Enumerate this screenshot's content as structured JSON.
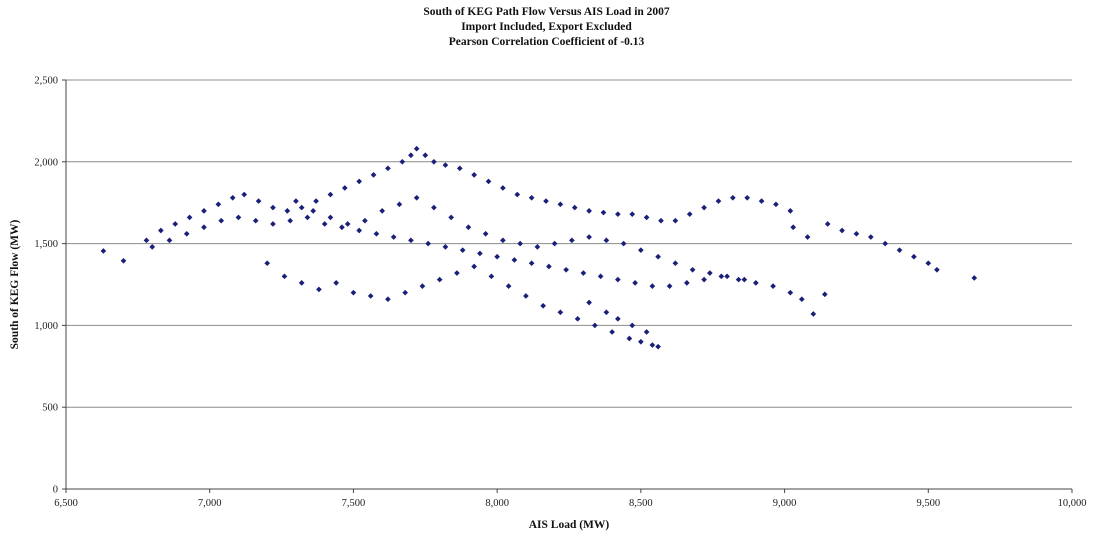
{
  "chart_data": {
    "type": "scatter",
    "title": "South of KEG Path Flow Versus AIS Load in 2007",
    "subtitle": "Import Included, Export Excluded",
    "subtitle2": "Pearson Correlation Coefficient of -0.13",
    "xlabel": "AIS Load (MW)",
    "ylabel": "South of KEG Flow (MW)",
    "xlim": [
      6500,
      10000
    ],
    "ylim": [
      0,
      2500
    ],
    "xticks": [
      "6,500",
      "7,000",
      "7,500",
      "8,000",
      "8,500",
      "9,000",
      "9,500",
      "10,000"
    ],
    "yticks": [
      "0",
      "500",
      "1,000",
      "1,500",
      "2,000",
      "2,500"
    ],
    "grid": "horizontal",
    "marker_color": "#1a1f78",
    "series": [
      {
        "points": [
          [
            6630,
            1455
          ],
          [
            6700,
            1395
          ],
          [
            6780,
            1520
          ],
          [
            6830,
            1580
          ],
          [
            6880,
            1620
          ],
          [
            6930,
            1660
          ],
          [
            6980,
            1700
          ],
          [
            7030,
            1740
          ],
          [
            7080,
            1780
          ],
          [
            7120,
            1800
          ],
          [
            7170,
            1760
          ],
          [
            7220,
            1720
          ],
          [
            7270,
            1700
          ],
          [
            7320,
            1720
          ],
          [
            7370,
            1760
          ],
          [
            7420,
            1800
          ],
          [
            7470,
            1840
          ],
          [
            7520,
            1880
          ],
          [
            7570,
            1920
          ],
          [
            7620,
            1960
          ],
          [
            7670,
            2000
          ],
          [
            7700,
            2040
          ],
          [
            7720,
            2080
          ],
          [
            7750,
            2040
          ],
          [
            7780,
            2000
          ],
          [
            7820,
            1980
          ],
          [
            7870,
            1960
          ],
          [
            7920,
            1920
          ],
          [
            7970,
            1880
          ],
          [
            8020,
            1840
          ],
          [
            8070,
            1800
          ],
          [
            8120,
            1780
          ],
          [
            8170,
            1760
          ],
          [
            8220,
            1740
          ],
          [
            8270,
            1720
          ],
          [
            8320,
            1700
          ],
          [
            8370,
            1690
          ],
          [
            8420,
            1680
          ],
          [
            8470,
            1680
          ],
          [
            8520,
            1660
          ],
          [
            8570,
            1640
          ],
          [
            8620,
            1640
          ],
          [
            8670,
            1680
          ],
          [
            8720,
            1720
          ],
          [
            8770,
            1760
          ],
          [
            8820,
            1780
          ],
          [
            8870,
            1780
          ],
          [
            8920,
            1760
          ],
          [
            8970,
            1740
          ],
          [
            9020,
            1700
          ],
          [
            6800,
            1480
          ],
          [
            6860,
            1520
          ],
          [
            6920,
            1560
          ],
          [
            6980,
            1600
          ],
          [
            7040,
            1640
          ],
          [
            7100,
            1660
          ],
          [
            7160,
            1640
          ],
          [
            7220,
            1620
          ],
          [
            7280,
            1640
          ],
          [
            7340,
            1660
          ],
          [
            7400,
            1620
          ],
          [
            7460,
            1600
          ],
          [
            7520,
            1580
          ],
          [
            7580,
            1560
          ],
          [
            7640,
            1540
          ],
          [
            7700,
            1520
          ],
          [
            7760,
            1500
          ],
          [
            7820,
            1480
          ],
          [
            7880,
            1460
          ],
          [
            7940,
            1440
          ],
          [
            8000,
            1420
          ],
          [
            8060,
            1400
          ],
          [
            8120,
            1380
          ],
          [
            8180,
            1360
          ],
          [
            8240,
            1340
          ],
          [
            8300,
            1320
          ],
          [
            8360,
            1300
          ],
          [
            8420,
            1280
          ],
          [
            8480,
            1260
          ],
          [
            8540,
            1240
          ],
          [
            8600,
            1240
          ],
          [
            8660,
            1260
          ],
          [
            8720,
            1280
          ],
          [
            8780,
            1300
          ],
          [
            8840,
            1280
          ],
          [
            8900,
            1260
          ],
          [
            8960,
            1240
          ],
          [
            9020,
            1200
          ],
          [
            9060,
            1160
          ],
          [
            9100,
            1070
          ],
          [
            7200,
            1380
          ],
          [
            7260,
            1300
          ],
          [
            7320,
            1260
          ],
          [
            7380,
            1220
          ],
          [
            7440,
            1260
          ],
          [
            7500,
            1200
          ],
          [
            7560,
            1180
          ],
          [
            7620,
            1160
          ],
          [
            7680,
            1200
          ],
          [
            7740,
            1240
          ],
          [
            7800,
            1280
          ],
          [
            7860,
            1320
          ],
          [
            7920,
            1360
          ],
          [
            7980,
            1300
          ],
          [
            8040,
            1240
          ],
          [
            8100,
            1180
          ],
          [
            8160,
            1120
          ],
          [
            8220,
            1080
          ],
          [
            8280,
            1040
          ],
          [
            8340,
            1000
          ],
          [
            8400,
            960
          ],
          [
            8460,
            920
          ],
          [
            8500,
            900
          ],
          [
            8540,
            880
          ],
          [
            8560,
            870
          ],
          [
            8520,
            960
          ],
          [
            8470,
            1000
          ],
          [
            8420,
            1040
          ],
          [
            8380,
            1080
          ],
          [
            8320,
            1140
          ],
          [
            7300,
            1760
          ],
          [
            7360,
            1700
          ],
          [
            7420,
            1660
          ],
          [
            7480,
            1620
          ],
          [
            7540,
            1640
          ],
          [
            7600,
            1700
          ],
          [
            7660,
            1740
          ],
          [
            7720,
            1780
          ],
          [
            7780,
            1720
          ],
          [
            7840,
            1660
          ],
          [
            7900,
            1600
          ],
          [
            7960,
            1560
          ],
          [
            8020,
            1520
          ],
          [
            8080,
            1500
          ],
          [
            8140,
            1480
          ],
          [
            8200,
            1500
          ],
          [
            8260,
            1520
          ],
          [
            8320,
            1540
          ],
          [
            8380,
            1520
          ],
          [
            8440,
            1500
          ],
          [
            8500,
            1460
          ],
          [
            8560,
            1420
          ],
          [
            8620,
            1380
          ],
          [
            8680,
            1340
          ],
          [
            8740,
            1320
          ],
          [
            8800,
            1300
          ],
          [
            8860,
            1280
          ],
          [
            9150,
            1620
          ],
          [
            9200,
            1580
          ],
          [
            9250,
            1560
          ],
          [
            9300,
            1540
          ],
          [
            9350,
            1500
          ],
          [
            9400,
            1460
          ],
          [
            9450,
            1420
          ],
          [
            9500,
            1380
          ],
          [
            9530,
            1340
          ],
          [
            9660,
            1290
          ],
          [
            9140,
            1190
          ],
          [
            9080,
            1540
          ],
          [
            9030,
            1600
          ]
        ]
      }
    ]
  }
}
